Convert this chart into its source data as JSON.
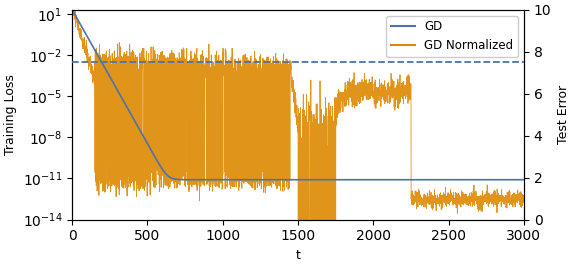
{
  "title": "",
  "xlabel": "t",
  "ylabel_left": "Training Loss",
  "ylabel_right": "Test Error",
  "xlim": [
    0,
    3000
  ],
  "ylim_left": [
    1e-14,
    20
  ],
  "ylim_right": [
    0,
    10
  ],
  "gd_color": "#4c72b0",
  "gd_norm_color": "#dd8800",
  "gd_test_error_value": 7.5,
  "legend_labels": [
    "GD",
    "GD Normalized"
  ],
  "seed": 12345,
  "n_points": 3000
}
